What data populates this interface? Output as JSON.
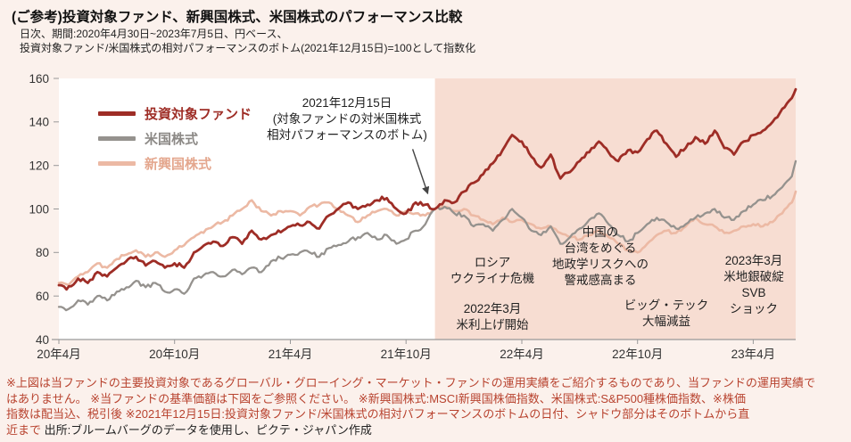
{
  "header": {
    "title": "(ご参考)投資対象ファンド、新興国株式、米国株式のパフォーマンス比較",
    "subtitle_lines": [
      "日次、期間:2020年4月30日~2023年7月5日、円ベース、",
      "投資対象ファンド/米国株式の相対パフォーマンスのボトム(2021年12月15日)=100として指数化"
    ]
  },
  "colors": {
    "page_bg": "#fbf1ec",
    "plot_bg": "#ffffff",
    "shade": "#f7ddd2",
    "axis": "#999999",
    "footnote": "#b8432f"
  },
  "chart_data": {
    "type": "line",
    "title": "(ご参考)投資対象ファンド、新興国株式、米国株式のパフォーマンス比較",
    "x_unit_note": "months since 2020-04-30 (daily series approximated by keypoints)",
    "x_range": [
      0,
      38.2
    ],
    "ylim": [
      40,
      160
    ],
    "y_ticks": [
      160,
      140,
      120,
      100,
      80,
      60,
      40
    ],
    "x_ticks": [
      {
        "t": 0,
        "label": "20年4月"
      },
      {
        "t": 6,
        "label": "20年10月"
      },
      {
        "t": 12,
        "label": "21年4月"
      },
      {
        "t": 18,
        "label": "21年10月"
      },
      {
        "t": 24,
        "label": "22年4月"
      },
      {
        "t": 30,
        "label": "22年10月"
      },
      {
        "t": 36,
        "label": "23年4月"
      }
    ],
    "shade_from_t": 19.5,
    "grid": false,
    "legend_position": "top-left",
    "series": [
      {
        "name": "投資対象ファンド",
        "color": "#9e2d26",
        "label_color": "#9e2d26",
        "width": 2.8,
        "t": [
          0,
          0.4,
          1,
          1.5,
          2,
          2.5,
          3,
          3.6,
          4,
          4.5,
          5,
          5.5,
          6,
          6.5,
          7,
          8,
          8.5,
          9,
          9.5,
          10,
          10.5,
          11,
          12,
          13,
          13.5,
          14,
          15,
          15.5,
          16,
          16.5,
          17,
          17.5,
          18,
          18.5,
          19,
          19.5,
          20,
          20.5,
          21,
          21.5,
          22,
          22.5,
          23,
          23.5,
          24,
          24.5,
          25,
          25.5,
          26,
          26.5,
          27,
          28,
          28.5,
          29,
          29.5,
          30,
          30.5,
          31,
          31.5,
          32,
          32.5,
          33,
          33.5,
          34,
          34.5,
          35,
          35.5,
          36,
          36.5,
          37,
          37.5,
          38,
          38.2
        ],
        "values": [
          65,
          63,
          68,
          66,
          71,
          69,
          73,
          77,
          78,
          74,
          76,
          73,
          75,
          73,
          80,
          85,
          83,
          87,
          84,
          90,
          86,
          88,
          92,
          94,
          91,
          97,
          103,
          100,
          102,
          104,
          105,
          100,
          98,
          103,
          102,
          100,
          104,
          103,
          108,
          112,
          116,
          121,
          127,
          134,
          131,
          124,
          119,
          125,
          114,
          117,
          122,
          131,
          126,
          122,
          127,
          126,
          132,
          136,
          130,
          124,
          128,
          133,
          130,
          136,
          128,
          125,
          131,
          134,
          136,
          140,
          146,
          151,
          155
        ]
      },
      {
        "name": "米国株式",
        "color": "#95928e",
        "label_color": "#8c8986",
        "width": 2.3,
        "t": [
          0,
          0.5,
          1,
          1.5,
          2,
          2.5,
          3,
          3.5,
          4,
          4.5,
          5,
          5.5,
          6,
          6.5,
          7,
          8,
          8.5,
          9,
          9.5,
          10,
          10.5,
          11,
          12,
          12.5,
          13,
          13.5,
          14,
          15,
          15.5,
          16,
          16.5,
          17,
          17.5,
          18,
          18.5,
          19,
          19.5,
          20,
          20.5,
          21,
          21.5,
          22,
          22.5,
          23,
          23.5,
          24,
          24.5,
          25,
          25.5,
          26,
          26.5,
          27,
          27.5,
          28,
          28.5,
          29,
          29.5,
          30,
          30.5,
          31,
          31.5,
          32,
          32.5,
          33,
          33.5,
          34,
          34.5,
          35,
          35.5,
          36,
          36.5,
          37,
          37.5,
          38,
          38.2
        ],
        "values": [
          55,
          54,
          58,
          56,
          60,
          58,
          62,
          64,
          67,
          64,
          66,
          62,
          63,
          61,
          68,
          71,
          69,
          72,
          70,
          73,
          71,
          76,
          79,
          80,
          80,
          78,
          82,
          85,
          87,
          89,
          86,
          88,
          84,
          86,
          90,
          93,
          100,
          101,
          98,
          97,
          92,
          93,
          90,
          95,
          100,
          96,
          90,
          88,
          92,
          84,
          87,
          91,
          95,
          98,
          93,
          88,
          85,
          89,
          93,
          96,
          94,
          91,
          93,
          96,
          98,
          100,
          96,
          95,
          99,
          102,
          104,
          106,
          110,
          115,
          122
        ]
      },
      {
        "name": "新興国株式",
        "color": "#ecb9a4",
        "label_color": "#e4a78e",
        "width": 2.6,
        "t": [
          0,
          0.5,
          1,
          1.5,
          2,
          2.5,
          3,
          3.5,
          4,
          4.5,
          5,
          5.5,
          6,
          7,
          8,
          8.5,
          9,
          9.5,
          10,
          10.5,
          11,
          11.5,
          12,
          12.5,
          13,
          14,
          14.5,
          15,
          15.5,
          16,
          16.5,
          17,
          17.5,
          18,
          18.5,
          19,
          19.5,
          20,
          20.5,
          21,
          21.5,
          22,
          22.5,
          23,
          23.5,
          24,
          24.5,
          25,
          25.5,
          26,
          26.5,
          27,
          27.5,
          28,
          28.5,
          29,
          29.5,
          30,
          30.5,
          31,
          31.5,
          32,
          32.5,
          33,
          33.5,
          34,
          34.5,
          35,
          35.5,
          36,
          36.5,
          37,
          37.5,
          38,
          38.2
        ],
        "values": [
          66,
          65,
          69,
          71,
          75,
          73,
          77,
          79,
          81,
          78,
          80,
          78,
          81,
          87,
          92,
          94,
          97,
          100,
          104,
          99,
          97,
          99,
          99,
          97,
          101,
          103,
          100,
          97,
          94,
          97,
          99,
          100,
          97,
          99,
          98,
          97,
          100,
          101,
          99,
          100,
          97,
          95,
          93,
          96,
          94,
          95,
          93,
          91,
          92,
          89,
          87,
          86,
          88,
          90,
          87,
          84,
          81,
          80,
          84,
          88,
          90,
          89,
          92,
          96,
          93,
          92,
          89,
          90,
          92,
          93,
          92,
          94,
          98,
          103,
          108
        ]
      }
    ],
    "annotations": {
      "bottom_note": {
        "lines": [
          "2021年12月15日",
          "(対象ファンドの対米国株式",
          "相対パフォーマンスのボトム)"
        ]
      },
      "events": [
        {
          "lines": [
            "ロシア",
            "ウクライナ危機"
          ]
        },
        {
          "lines": [
            "2022年3月",
            "米利上げ開始"
          ]
        },
        {
          "lines": [
            "中国の",
            "台湾をめぐる",
            "地政学リスクへの",
            "警戒感高まる"
          ]
        },
        {
          "lines": [
            "ビッグ・テック",
            "大幅減益"
          ]
        },
        {
          "lines": [
            "2023年3月",
            "米地銀破綻",
            "SVB",
            "ショック"
          ]
        }
      ]
    }
  },
  "footer": {
    "lines": [
      "※上図は当ファンドの主要投資対象であるグローバル・グローイング・マーケット・ファンドの運用実績をご紹介するものであり、当ファンドの運用実績で",
      "はありません。 ※当ファンドの基準価額は下図をご参照ください。 ※新興国株式:MSCI新興国株価指数、米国株式:S&P500種株価指数、※株価",
      "指数は配当込、税引後 ※2021年12月15日:投資対象ファンド/米国株式の相対パフォーマンスのボトムの日付、シャドウ部分はそのボトムから直",
      "近まで "
    ],
    "source": "出所:ブルームバーグのデータを使用し、ピクテ・ジャパン作成"
  }
}
